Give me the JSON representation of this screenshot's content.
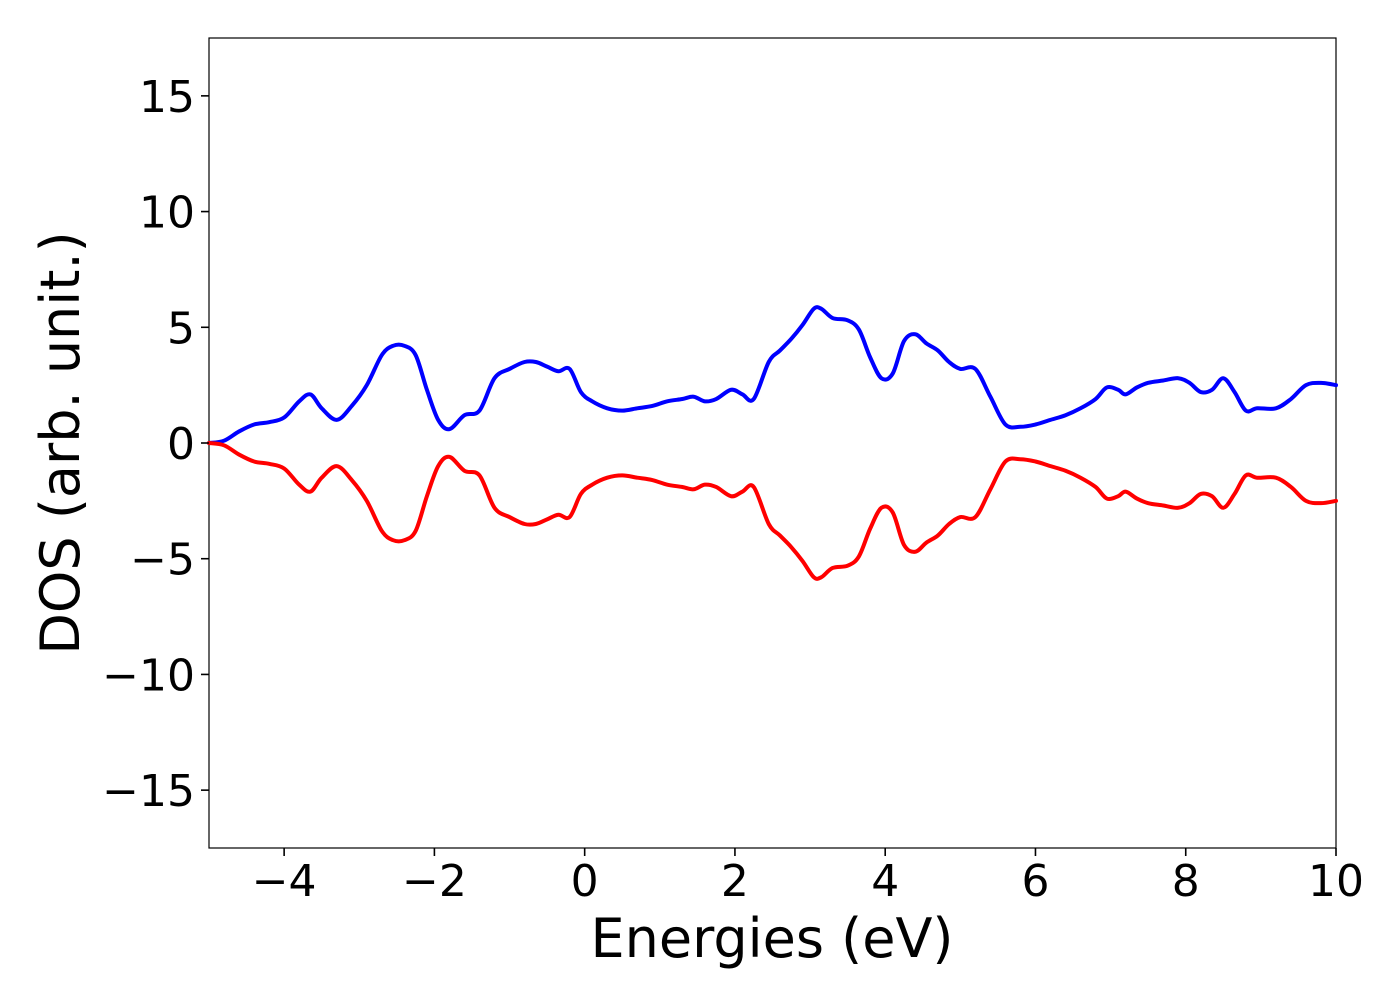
{
  "chart_data": {
    "type": "line",
    "title": "",
    "xlabel": "Energies (eV)",
    "ylabel": "DOS (arb. unit.)",
    "xlim": [
      -5,
      10
    ],
    "ylim": [
      -17.5,
      17.5
    ],
    "x_ticks": [
      -4,
      -2,
      0,
      2,
      4,
      6,
      8,
      10
    ],
    "x_tick_labels": [
      "−4",
      "−2",
      "0",
      "2",
      "4",
      "6",
      "8",
      "10"
    ],
    "y_ticks": [
      15,
      10,
      5,
      0,
      -5,
      -10,
      -15
    ],
    "y_tick_labels": [
      "15",
      "10",
      "5",
      "0",
      "−5",
      "−10",
      "−15"
    ],
    "grid": false,
    "legend": "none",
    "series": [
      {
        "color": "#0000ff",
        "x": [
          -5.0,
          -4.8,
          -4.6,
          -4.4,
          -4.2,
          -4.0,
          -3.8,
          -3.65,
          -3.5,
          -3.3,
          -3.1,
          -2.9,
          -2.7,
          -2.55,
          -2.4,
          -2.25,
          -2.1,
          -1.95,
          -1.8,
          -1.6,
          -1.4,
          -1.2,
          -1.0,
          -0.8,
          -0.65,
          -0.5,
          -0.35,
          -0.2,
          -0.05,
          0.1,
          0.3,
          0.5,
          0.7,
          0.9,
          1.1,
          1.3,
          1.45,
          1.6,
          1.75,
          1.95,
          2.1,
          2.25,
          2.45,
          2.6,
          2.75,
          2.9,
          3.05,
          3.15,
          3.3,
          3.5,
          3.65,
          3.8,
          3.95,
          4.1,
          4.25,
          4.4,
          4.55,
          4.7,
          4.85,
          5.0,
          5.2,
          5.4,
          5.6,
          5.8,
          6.0,
          6.2,
          6.4,
          6.6,
          6.8,
          6.95,
          7.1,
          7.2,
          7.35,
          7.5,
          7.7,
          7.9,
          8.05,
          8.2,
          8.35,
          8.5,
          8.65,
          8.8,
          8.95,
          9.2,
          9.4,
          9.6,
          9.8,
          10.0
        ],
        "y": [
          0.0,
          0.1,
          0.5,
          0.8,
          0.9,
          1.1,
          1.8,
          2.1,
          1.5,
          1.0,
          1.6,
          2.5,
          3.8,
          4.2,
          4.2,
          3.8,
          2.3,
          1.0,
          0.6,
          1.2,
          1.4,
          2.8,
          3.2,
          3.5,
          3.5,
          3.3,
          3.1,
          3.2,
          2.2,
          1.8,
          1.5,
          1.4,
          1.5,
          1.6,
          1.8,
          1.9,
          2.0,
          1.8,
          1.9,
          2.3,
          2.1,
          1.9,
          3.5,
          4.0,
          4.5,
          5.1,
          5.8,
          5.8,
          5.4,
          5.3,
          4.9,
          3.7,
          2.8,
          3.0,
          4.4,
          4.7,
          4.3,
          4.0,
          3.5,
          3.2,
          3.2,
          2.0,
          0.8,
          0.7,
          0.8,
          1.0,
          1.2,
          1.5,
          1.9,
          2.4,
          2.3,
          2.1,
          2.4,
          2.6,
          2.7,
          2.8,
          2.6,
          2.2,
          2.3,
          2.8,
          2.2,
          1.4,
          1.5,
          1.5,
          1.9,
          2.5,
          2.6,
          2.5
        ]
      },
      {
        "color": "#ff0000",
        "x": [
          -5.0,
          -4.8,
          -4.6,
          -4.4,
          -4.2,
          -4.0,
          -3.8,
          -3.65,
          -3.5,
          -3.3,
          -3.1,
          -2.9,
          -2.7,
          -2.55,
          -2.4,
          -2.25,
          -2.1,
          -1.95,
          -1.8,
          -1.6,
          -1.4,
          -1.2,
          -1.0,
          -0.8,
          -0.65,
          -0.5,
          -0.35,
          -0.2,
          -0.05,
          0.1,
          0.3,
          0.5,
          0.7,
          0.9,
          1.1,
          1.3,
          1.45,
          1.6,
          1.75,
          1.95,
          2.1,
          2.25,
          2.45,
          2.6,
          2.75,
          2.9,
          3.05,
          3.15,
          3.3,
          3.5,
          3.65,
          3.8,
          3.95,
          4.1,
          4.25,
          4.4,
          4.55,
          4.7,
          4.85,
          5.0,
          5.2,
          5.4,
          5.6,
          5.8,
          6.0,
          6.2,
          6.4,
          6.6,
          6.8,
          6.95,
          7.1,
          7.2,
          7.35,
          7.5,
          7.7,
          7.9,
          8.05,
          8.2,
          8.35,
          8.5,
          8.65,
          8.8,
          8.95,
          9.2,
          9.4,
          9.6,
          9.8,
          10.0
        ],
        "y": [
          0.0,
          -0.1,
          -0.5,
          -0.8,
          -0.9,
          -1.1,
          -1.8,
          -2.1,
          -1.5,
          -1.0,
          -1.6,
          -2.5,
          -3.8,
          -4.2,
          -4.2,
          -3.8,
          -2.3,
          -1.0,
          -0.6,
          -1.2,
          -1.4,
          -2.8,
          -3.2,
          -3.5,
          -3.5,
          -3.3,
          -3.1,
          -3.2,
          -2.2,
          -1.8,
          -1.5,
          -1.4,
          -1.5,
          -1.6,
          -1.8,
          -1.9,
          -2.0,
          -1.8,
          -1.9,
          -2.3,
          -2.1,
          -1.9,
          -3.5,
          -4.0,
          -4.5,
          -5.1,
          -5.8,
          -5.8,
          -5.4,
          -5.3,
          -4.9,
          -3.7,
          -2.8,
          -3.0,
          -4.4,
          -4.7,
          -4.3,
          -4.0,
          -3.5,
          -3.2,
          -3.2,
          -2.0,
          -0.8,
          -0.7,
          -0.8,
          -1.0,
          -1.2,
          -1.5,
          -1.9,
          -2.4,
          -2.3,
          -2.1,
          -2.4,
          -2.6,
          -2.7,
          -2.8,
          -2.6,
          -2.2,
          -2.3,
          -2.8,
          -2.2,
          -1.4,
          -1.5,
          -1.5,
          -1.9,
          -2.5,
          -2.6,
          -2.5
        ]
      }
    ]
  }
}
